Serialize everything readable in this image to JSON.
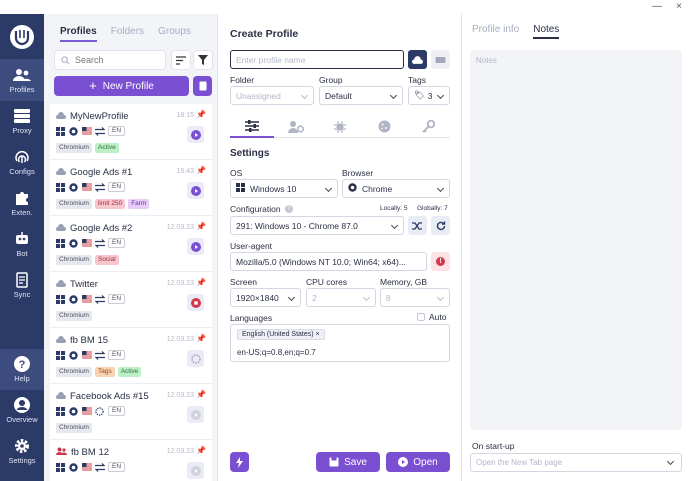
{
  "window": {
    "minimize": "—",
    "close": "×"
  },
  "nav": {
    "items": [
      {
        "label": "Profiles",
        "icon": "users-icon"
      },
      {
        "label": "Proxy",
        "icon": "server-icon"
      },
      {
        "label": "Configs",
        "icon": "fingerprint-icon"
      },
      {
        "label": "Exten.",
        "icon": "puzzle-icon"
      },
      {
        "label": "Bot",
        "icon": "robot-icon"
      },
      {
        "label": "Sync",
        "icon": "sync-icon"
      }
    ],
    "bottom": [
      {
        "label": "Help",
        "icon": "help-icon"
      },
      {
        "label": "Overview",
        "icon": "user-circle-icon"
      },
      {
        "label": "Settings",
        "icon": "gear-icon"
      }
    ]
  },
  "list": {
    "tabs": [
      "Profiles",
      "Folders",
      "Groups"
    ],
    "search_placeholder": "Search",
    "new_profile": "New Profile",
    "profiles": [
      {
        "name": "MyNewProfile",
        "date": "18:15",
        "tags": [
          {
            "t": "Chromium",
            "c": "#e6e8ee",
            "f": "#4a4f63"
          },
          {
            "t": "Active",
            "c": "#bfefc6",
            "f": "#267a37"
          }
        ],
        "run": "play"
      },
      {
        "name": "Google Ads #1",
        "date": "15:43",
        "tags": [
          {
            "t": "Chromium",
            "c": "#e6e8ee",
            "f": "#4a4f63"
          },
          {
            "t": "limit 250",
            "c": "#f7c7cf",
            "f": "#a32c40"
          },
          {
            "t": "Farm",
            "c": "#e6cdf7",
            "f": "#6d2d9c"
          }
        ],
        "run": "play"
      },
      {
        "name": "Google Ads #2",
        "date": "12.03.23",
        "tags": [
          {
            "t": "Chromium",
            "c": "#e6e8ee",
            "f": "#4a4f63"
          },
          {
            "t": "Social",
            "c": "#f7c7cf",
            "f": "#a32c40"
          }
        ],
        "run": "play"
      },
      {
        "name": "Twitter",
        "date": "12.03.23",
        "tags": [
          {
            "t": "Chromium",
            "c": "#e6e8ee",
            "f": "#4a4f63"
          }
        ],
        "run": "stop"
      },
      {
        "name": "fb BM 15",
        "date": "12.03.23",
        "tags": [
          {
            "t": "Chromium",
            "c": "#e6e8ee",
            "f": "#4a4f63"
          },
          {
            "t": "Tags",
            "c": "#f8d3b6",
            "f": "#9a4a12"
          },
          {
            "t": "Active",
            "c": "#bfefc6",
            "f": "#267a37"
          }
        ],
        "run": "loading"
      },
      {
        "name": "Facebook Ads #15",
        "date": "12.03.23",
        "tags": [
          {
            "t": "Chromium",
            "c": "#e6e8ee",
            "f": "#4a4f63"
          }
        ],
        "run": "idle"
      },
      {
        "name": "fb BM 12",
        "date": "12.03.23",
        "tags": [],
        "run": "idle"
      }
    ]
  },
  "form": {
    "title": "Create Profile",
    "name_placeholder": "Enter profile name",
    "folder_label": "Folder",
    "folder_value": "Unassigned",
    "group_label": "Group",
    "group_value": "Default",
    "tags_label": "Tags",
    "tags_count": "3",
    "settings_title": "Settings",
    "os_label": "OS",
    "os_value": "Windows 10",
    "browser_label": "Browser",
    "browser_value": "Chrome",
    "config_label": "Configuration",
    "locally": "Locally: 5",
    "globally": "Globally: 7",
    "config_value": "291: Windows 10 - Chrome 87.0",
    "ua_label": "User-agent",
    "ua_value": "Mozilla/5.0 (Windows NT 10.0; Win64; x64)...",
    "screen_label": "Screen",
    "screen_value": "1920×1840",
    "cpu_label": "CPU cores",
    "cpu_value": "2",
    "memory_label": "Memory, GB",
    "memory_value": "8",
    "languages_label": "Languages",
    "auto_label": "Auto",
    "lang_chip": "English (United States)",
    "lang_value": "en-US;q=0.8,en;q=0.7",
    "save": "Save",
    "open": "Open"
  },
  "right": {
    "tabs": [
      "Profile info",
      "Notes"
    ],
    "notes_placeholder": "Notes",
    "startup_label": "On start-up",
    "startup_value": "Open the New Tab page"
  }
}
